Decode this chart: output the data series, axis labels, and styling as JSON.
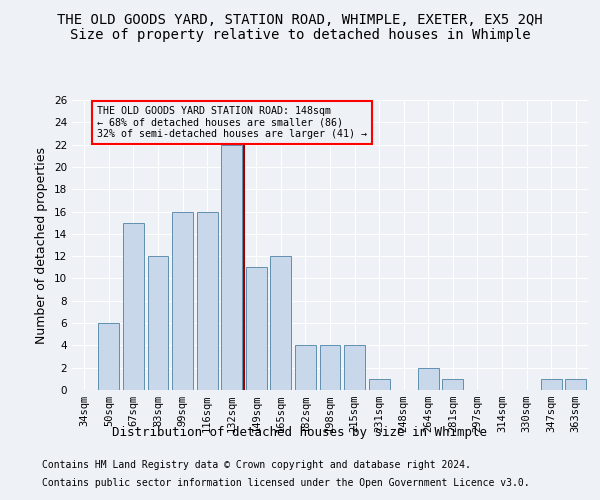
{
  "title": "THE OLD GOODS YARD, STATION ROAD, WHIMPLE, EXETER, EX5 2QH",
  "subtitle": "Size of property relative to detached houses in Whimple",
  "xlabel": "Distribution of detached houses by size in Whimple",
  "ylabel": "Number of detached properties",
  "categories": [
    "34sqm",
    "50sqm",
    "67sqm",
    "83sqm",
    "99sqm",
    "116sqm",
    "132sqm",
    "149sqm",
    "165sqm",
    "182sqm",
    "198sqm",
    "215sqm",
    "231sqm",
    "248sqm",
    "264sqm",
    "281sqm",
    "297sqm",
    "314sqm",
    "330sqm",
    "347sqm",
    "363sqm"
  ],
  "values": [
    0,
    6,
    15,
    12,
    16,
    16,
    22,
    11,
    12,
    4,
    4,
    4,
    1,
    0,
    2,
    1,
    0,
    0,
    0,
    1,
    1
  ],
  "bar_color": "#c8d8ea",
  "bar_edge_color": "#6090b0",
  "highlight_index": 6,
  "ylim": [
    0,
    26
  ],
  "yticks": [
    0,
    2,
    4,
    6,
    8,
    10,
    12,
    14,
    16,
    18,
    20,
    22,
    24,
    26
  ],
  "annotation_title": "THE OLD GOODS YARD STATION ROAD: 148sqm",
  "annotation_line1": "← 68% of detached houses are smaller (86)",
  "annotation_line2": "32% of semi-detached houses are larger (41) →",
  "footer1": "Contains HM Land Registry data © Crown copyright and database right 2024.",
  "footer2": "Contains public sector information licensed under the Open Government Licence v3.0.",
  "background_color": "#eef2f7",
  "grid_color": "#ffffff",
  "title_fontsize": 10,
  "subtitle_fontsize": 10,
  "axis_label_fontsize": 9,
  "tick_fontsize": 7.5,
  "footer_fontsize": 7
}
